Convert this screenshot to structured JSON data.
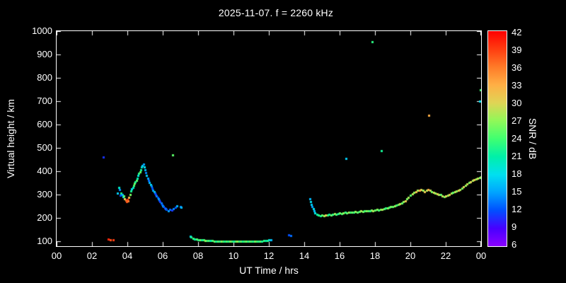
{
  "chart_data": {
    "type": "scatter",
    "title": "2025-11-07. f = 2260 kHz",
    "xlabel": "UT Time / hrs",
    "ylabel": "Virtual height / km",
    "colorbar_label": "SNR / dB",
    "xlim": [
      0,
      24
    ],
    "ylim": [
      80,
      1000
    ],
    "snr_lim": [
      6,
      42
    ],
    "grid": false,
    "legend": "none",
    "marker": "square",
    "marker_size_px": 3,
    "x_ticks": [
      {
        "value": 0,
        "label": "00"
      },
      {
        "value": 2,
        "label": "02"
      },
      {
        "value": 4,
        "label": "04"
      },
      {
        "value": 6,
        "label": "06"
      },
      {
        "value": 8,
        "label": "08"
      },
      {
        "value": 10,
        "label": "10"
      },
      {
        "value": 12,
        "label": "12"
      },
      {
        "value": 14,
        "label": "14"
      },
      {
        "value": 16,
        "label": "16"
      },
      {
        "value": 18,
        "label": "18"
      },
      {
        "value": 20,
        "label": "20"
      },
      {
        "value": 22,
        "label": "22"
      },
      {
        "value": 24,
        "label": "00"
      }
    ],
    "y_ticks": [
      100,
      200,
      300,
      400,
      500,
      600,
      700,
      800,
      900,
      1000
    ],
    "snr_ticks": [
      6,
      9,
      12,
      15,
      18,
      21,
      24,
      27,
      30,
      33,
      36,
      39,
      42
    ],
    "points": [
      [
        2.64,
        462,
        11
      ],
      [
        2.92,
        110,
        40
      ],
      [
        3.05,
        106,
        38
      ],
      [
        3.18,
        108,
        39
      ],
      [
        3.45,
        308,
        17
      ],
      [
        3.5,
        330,
        20
      ],
      [
        3.55,
        322,
        14
      ],
      [
        3.6,
        298,
        12
      ],
      [
        3.65,
        306,
        22
      ],
      [
        3.7,
        300,
        16
      ],
      [
        3.75,
        292,
        18
      ],
      [
        3.8,
        296,
        25
      ],
      [
        3.85,
        284,
        31
      ],
      [
        3.9,
        278,
        35
      ],
      [
        3.95,
        272,
        38
      ],
      [
        4.0,
        280,
        40
      ],
      [
        4.05,
        274,
        36
      ],
      [
        4.1,
        290,
        32
      ],
      [
        4.15,
        300,
        26
      ],
      [
        4.2,
        316,
        22
      ],
      [
        4.25,
        326,
        18
      ],
      [
        4.3,
        332,
        20
      ],
      [
        4.35,
        340,
        24
      ],
      [
        4.4,
        348,
        26
      ],
      [
        4.45,
        355,
        22
      ],
      [
        4.5,
        362,
        25
      ],
      [
        4.55,
        372,
        21
      ],
      [
        4.6,
        382,
        19
      ],
      [
        4.65,
        392,
        23
      ],
      [
        4.7,
        398,
        25
      ],
      [
        4.75,
        408,
        22
      ],
      [
        4.8,
        418,
        19
      ],
      [
        4.85,
        426,
        17
      ],
      [
        4.9,
        430,
        15
      ],
      [
        4.95,
        420,
        18
      ],
      [
        5.0,
        408,
        16
      ],
      [
        5.05,
        396,
        14
      ],
      [
        5.1,
        384,
        17
      ],
      [
        5.15,
        372,
        15
      ],
      [
        5.2,
        360,
        13
      ],
      [
        5.25,
        352,
        16
      ],
      [
        5.3,
        344,
        18
      ],
      [
        5.35,
        336,
        14
      ],
      [
        5.4,
        328,
        12
      ],
      [
        5.45,
        320,
        15
      ],
      [
        5.5,
        314,
        17
      ],
      [
        5.55,
        306,
        13
      ],
      [
        5.6,
        300,
        11
      ],
      [
        5.65,
        294,
        14
      ],
      [
        5.7,
        288,
        12
      ],
      [
        5.75,
        282,
        15
      ],
      [
        5.8,
        276,
        13
      ],
      [
        5.85,
        270,
        11
      ],
      [
        5.9,
        264,
        14
      ],
      [
        5.95,
        258,
        12
      ],
      [
        6.0,
        252,
        15
      ],
      [
        6.05,
        248,
        13
      ],
      [
        6.1,
        244,
        11
      ],
      [
        6.15,
        240,
        14
      ],
      [
        6.2,
        236,
        12
      ],
      [
        6.3,
        232,
        15
      ],
      [
        6.4,
        238,
        13
      ],
      [
        6.5,
        234,
        11
      ],
      [
        6.55,
        470,
        25
      ],
      [
        6.6,
        240,
        14
      ],
      [
        6.7,
        246,
        12
      ],
      [
        6.8,
        252,
        16
      ],
      [
        7.0,
        250,
        14
      ],
      [
        7.05,
        246,
        16
      ],
      [
        7.55,
        122,
        18
      ],
      [
        7.6,
        118,
        22
      ],
      [
        7.7,
        114,
        24
      ],
      [
        7.8,
        111,
        21
      ],
      [
        7.9,
        109,
        25
      ],
      [
        8.0,
        108,
        23
      ],
      [
        8.1,
        107,
        26
      ],
      [
        8.2,
        106,
        22
      ],
      [
        8.3,
        106,
        24
      ],
      [
        8.4,
        105,
        27
      ],
      [
        8.5,
        104,
        23
      ],
      [
        8.6,
        104,
        25
      ],
      [
        8.7,
        103,
        21
      ],
      [
        8.8,
        103,
        24
      ],
      [
        8.9,
        102,
        26
      ],
      [
        9.0,
        102,
        22
      ],
      [
        9.1,
        102,
        25
      ],
      [
        9.2,
        101,
        23
      ],
      [
        9.3,
        101,
        27
      ],
      [
        9.4,
        101,
        24
      ],
      [
        9.5,
        100,
        22
      ],
      [
        9.6,
        100,
        25
      ],
      [
        9.7,
        100,
        23
      ],
      [
        9.8,
        100,
        26
      ],
      [
        9.9,
        100,
        24
      ],
      [
        10.0,
        100,
        22
      ],
      [
        10.1,
        100,
        25
      ],
      [
        10.2,
        100,
        27
      ],
      [
        10.3,
        100,
        23
      ],
      [
        10.4,
        100,
        25
      ],
      [
        10.5,
        100,
        22
      ],
      [
        10.6,
        100,
        24
      ],
      [
        10.7,
        100,
        26
      ],
      [
        10.8,
        100,
        23
      ],
      [
        10.9,
        100,
        25
      ],
      [
        11.0,
        100,
        24
      ],
      [
        11.1,
        100,
        22
      ],
      [
        11.2,
        101,
        26
      ],
      [
        11.3,
        101,
        24
      ],
      [
        11.4,
        101,
        23
      ],
      [
        11.5,
        102,
        25
      ],
      [
        11.6,
        102,
        22
      ],
      [
        11.7,
        103,
        24
      ],
      [
        11.8,
        104,
        21
      ],
      [
        11.9,
        105,
        23
      ],
      [
        12.0,
        106,
        19
      ],
      [
        12.1,
        108,
        16
      ],
      [
        13.1,
        128,
        12
      ],
      [
        13.25,
        124,
        13
      ],
      [
        14.3,
        282,
        16
      ],
      [
        14.35,
        270,
        18
      ],
      [
        14.4,
        258,
        17
      ],
      [
        14.45,
        248,
        15
      ],
      [
        14.5,
        240,
        18
      ],
      [
        14.55,
        230,
        16
      ],
      [
        14.6,
        222,
        19
      ],
      [
        14.7,
        216,
        21
      ],
      [
        14.8,
        212,
        23
      ],
      [
        14.9,
        210,
        22
      ],
      [
        15.0,
        212,
        25
      ],
      [
        15.1,
        210,
        27
      ],
      [
        15.2,
        214,
        31
      ],
      [
        15.3,
        212,
        24
      ],
      [
        15.4,
        215,
        22
      ],
      [
        15.5,
        213,
        26
      ],
      [
        15.6,
        216,
        23
      ],
      [
        15.7,
        218,
        28
      ],
      [
        15.8,
        216,
        24
      ],
      [
        15.9,
        220,
        22
      ],
      [
        16.0,
        222,
        26
      ],
      [
        16.1,
        220,
        24
      ],
      [
        16.2,
        222,
        27
      ],
      [
        16.3,
        224,
        23
      ],
      [
        16.35,
        455,
        17
      ],
      [
        16.4,
        222,
        25
      ],
      [
        16.5,
        224,
        28
      ],
      [
        16.6,
        226,
        24
      ],
      [
        16.7,
        224,
        26
      ],
      [
        16.8,
        226,
        23
      ],
      [
        16.9,
        228,
        27
      ],
      [
        17.0,
        226,
        25
      ],
      [
        17.1,
        228,
        24
      ],
      [
        17.2,
        230,
        28
      ],
      [
        17.3,
        228,
        26
      ],
      [
        17.4,
        230,
        24
      ],
      [
        17.5,
        232,
        27
      ],
      [
        17.6,
        230,
        25
      ],
      [
        17.7,
        232,
        23
      ],
      [
        17.8,
        234,
        26
      ],
      [
        17.85,
        955,
        23
      ],
      [
        17.9,
        232,
        28
      ],
      [
        18.0,
        234,
        25
      ],
      [
        18.1,
        236,
        27
      ],
      [
        18.2,
        234,
        24
      ],
      [
        18.3,
        236,
        26
      ],
      [
        18.35,
        488,
        22
      ],
      [
        18.4,
        238,
        28
      ],
      [
        18.5,
        240,
        25
      ],
      [
        18.6,
        242,
        23
      ],
      [
        18.7,
        244,
        27
      ],
      [
        18.8,
        246,
        24
      ],
      [
        18.9,
        248,
        26
      ],
      [
        19.0,
        250,
        25
      ],
      [
        19.1,
        252,
        28
      ],
      [
        19.2,
        255,
        24
      ],
      [
        19.3,
        258,
        26
      ],
      [
        19.4,
        262,
        29
      ],
      [
        19.5,
        266,
        25
      ],
      [
        19.6,
        270,
        27
      ],
      [
        19.7,
        275,
        31
      ],
      [
        19.8,
        282,
        26
      ],
      [
        19.9,
        290,
        28
      ],
      [
        20.0,
        298,
        25
      ],
      [
        20.1,
        305,
        29
      ],
      [
        20.2,
        310,
        27
      ],
      [
        20.3,
        314,
        32
      ],
      [
        20.4,
        318,
        28
      ],
      [
        20.5,
        320,
        34
      ],
      [
        20.6,
        322,
        30
      ],
      [
        20.7,
        318,
        27
      ],
      [
        20.8,
        314,
        31
      ],
      [
        20.9,
        318,
        28
      ],
      [
        21.0,
        322,
        33
      ],
      [
        21.05,
        640,
        33
      ],
      [
        21.1,
        318,
        29
      ],
      [
        21.2,
        314,
        26
      ],
      [
        21.3,
        310,
        30
      ],
      [
        21.4,
        308,
        27
      ],
      [
        21.5,
        305,
        31
      ],
      [
        21.6,
        302,
        28
      ],
      [
        21.7,
        300,
        25
      ],
      [
        21.8,
        296,
        29
      ],
      [
        21.9,
        292,
        26
      ],
      [
        22.0,
        295,
        30
      ],
      [
        22.1,
        298,
        27
      ],
      [
        22.2,
        302,
        31
      ],
      [
        22.3,
        306,
        28
      ],
      [
        22.4,
        310,
        25
      ],
      [
        22.5,
        312,
        29
      ],
      [
        22.6,
        315,
        27
      ],
      [
        22.7,
        318,
        31
      ],
      [
        22.8,
        322,
        28
      ],
      [
        22.9,
        328,
        26
      ],
      [
        23.0,
        334,
        30
      ],
      [
        23.1,
        340,
        27
      ],
      [
        23.2,
        346,
        29
      ],
      [
        23.3,
        352,
        26
      ],
      [
        23.4,
        356,
        30
      ],
      [
        23.5,
        360,
        28
      ],
      [
        23.6,
        364,
        31
      ],
      [
        23.7,
        368,
        27
      ],
      [
        23.8,
        372,
        29
      ],
      [
        23.9,
        375,
        26
      ],
      [
        23.93,
        700,
        18
      ],
      [
        23.96,
        748,
        24
      ],
      [
        24.0,
        378,
        28
      ]
    ]
  },
  "style": {
    "background": "#000000",
    "plot_background": "#000000",
    "frame_color": "#ffffff",
    "text_color": "#ffffff",
    "colormap": [
      {
        "value": 6,
        "color": "#8b00ff"
      },
      {
        "value": 9,
        "color": "#4800ff"
      },
      {
        "value": 12,
        "color": "#0050ff"
      },
      {
        "value": 15,
        "color": "#00a4ff"
      },
      {
        "value": 18,
        "color": "#00e0f0"
      },
      {
        "value": 21,
        "color": "#00f0a8"
      },
      {
        "value": 24,
        "color": "#40ff70"
      },
      {
        "value": 27,
        "color": "#90f858"
      },
      {
        "value": 30,
        "color": "#e0d455"
      },
      {
        "value": 33,
        "color": "#ffaf45"
      },
      {
        "value": 36,
        "color": "#ff7b28"
      },
      {
        "value": 39,
        "color": "#ff3c10"
      },
      {
        "value": 42,
        "color": "#ff0000"
      }
    ]
  }
}
